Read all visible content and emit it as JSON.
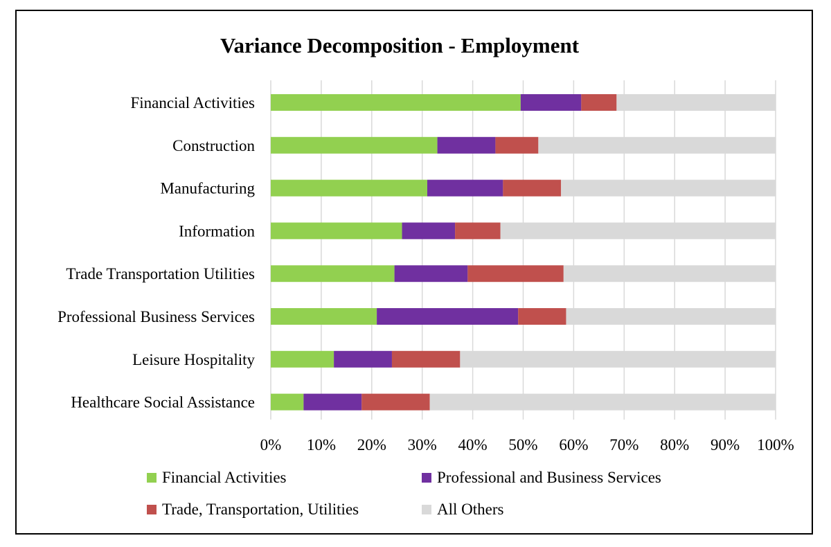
{
  "chart_data": {
    "type": "bar",
    "orientation": "horizontal",
    "stacked": true,
    "normalized": true,
    "title": "Variance Decomposition - Employment",
    "xlabel": "",
    "ylabel": "",
    "xlim": [
      0,
      100
    ],
    "x_ticks": [
      "0%",
      "10%",
      "20%",
      "30%",
      "40%",
      "50%",
      "60%",
      "70%",
      "80%",
      "90%",
      "100%"
    ],
    "grid": "vertical",
    "legend_position": "bottom",
    "categories": [
      "Financial Activities",
      "Construction",
      "Manufacturing",
      "Information",
      "Trade Transportation Utilities",
      "Professional Business Services",
      "Leisure Hospitality",
      "Healthcare Social Assistance"
    ],
    "series": [
      {
        "name": "Financial Activities",
        "color": "#92d050",
        "values": [
          49.5,
          33,
          31,
          26,
          24.5,
          21,
          12.5,
          6.5
        ]
      },
      {
        "name": "Professional and Business Services",
        "color": "#7030a0",
        "values": [
          12,
          11.5,
          15,
          10.5,
          14.5,
          28,
          11.5,
          11.5
        ]
      },
      {
        "name": "Trade, Transportation, Utilities",
        "color": "#c0504d",
        "values": [
          7,
          8.5,
          11.5,
          9,
          19,
          9.5,
          13.5,
          13.5
        ]
      },
      {
        "name": "All Others",
        "color": "#d9d9d9",
        "values": [
          31.5,
          47,
          42.5,
          54.5,
          42,
          41.5,
          62.5,
          68.5
        ]
      }
    ]
  }
}
